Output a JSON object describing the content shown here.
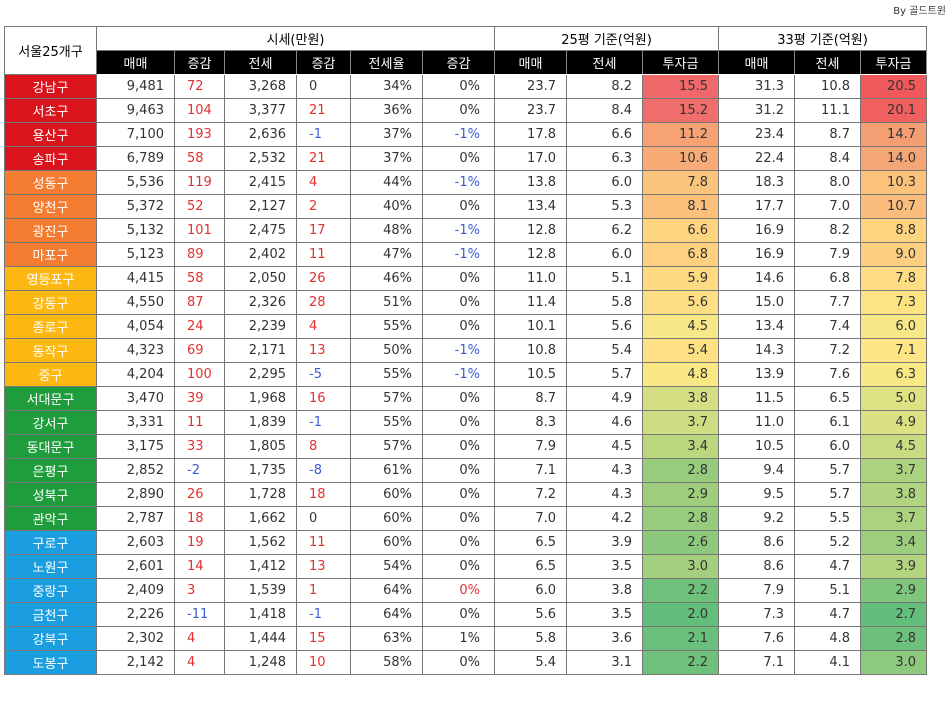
{
  "credit": "By 골드트윈",
  "header": {
    "region_col": "서울25개구",
    "groups": [
      "시세(만원)",
      "25평 기준(억원)",
      "33평 기준(억원)"
    ],
    "sub": [
      "매매",
      "증감",
      "전세",
      "증감",
      "전세율",
      "증감",
      "매매",
      "전세",
      "투자금",
      "매매",
      "전세",
      "투자금"
    ]
  },
  "rows": [
    {
      "name": "강남구",
      "tier": "red",
      "price": "9,481",
      "pchg": "72",
      "jeonse": "3,268",
      "jchg": "0",
      "ratio": "34%",
      "rchg": "0%",
      "p25": "23.7",
      "j25": "8.2",
      "i25": "15.5",
      "p33": "31.3",
      "j33": "10.8",
      "i33": "20.5",
      "c25": "#f0696a",
      "c33": "#f0595c"
    },
    {
      "name": "서초구",
      "tier": "red",
      "price": "9,463",
      "pchg": "104",
      "jeonse": "3,377",
      "jchg": "21",
      "ratio": "36%",
      "rchg": "0%",
      "p25": "23.7",
      "j25": "8.4",
      "i25": "15.2",
      "p33": "31.2",
      "j33": "11.1",
      "i33": "20.1",
      "c25": "#f06f6d",
      "c33": "#f0605f"
    },
    {
      "name": "용산구",
      "tier": "red",
      "price": "7,100",
      "pchg": "193",
      "jeonse": "2,636",
      "jchg": "-1",
      "ratio": "37%",
      "rchg": "-1%",
      "p25": "17.8",
      "j25": "6.6",
      "i25": "11.2",
      "p33": "23.4",
      "j33": "8.7",
      "i33": "14.7",
      "c25": "#f7a274",
      "c33": "#f49e74"
    },
    {
      "name": "송파구",
      "tier": "red",
      "price": "6,789",
      "pchg": "58",
      "jeonse": "2,532",
      "jchg": "21",
      "ratio": "37%",
      "rchg": "0%",
      "p25": "17.0",
      "j25": "6.3",
      "i25": "10.6",
      "p33": "22.4",
      "j33": "8.4",
      "i33": "14.0",
      "c25": "#f8aa77",
      "c33": "#f5a676"
    },
    {
      "name": "성동구",
      "tier": "orange",
      "price": "5,536",
      "pchg": "119",
      "jeonse": "2,415",
      "jchg": "4",
      "ratio": "44%",
      "rchg": "-1%",
      "p25": "13.8",
      "j25": "6.0",
      "i25": "7.8",
      "p33": "18.3",
      "j33": "8.0",
      "i33": "10.3",
      "c25": "#fbc47d",
      "c33": "#fbc27c"
    },
    {
      "name": "양천구",
      "tier": "orange",
      "price": "5,372",
      "pchg": "52",
      "jeonse": "2,127",
      "jchg": "2",
      "ratio": "40%",
      "rchg": "0%",
      "p25": "13.4",
      "j25": "5.3",
      "i25": "8.1",
      "p33": "17.7",
      "j33": "7.0",
      "i33": "10.7",
      "c25": "#fbc07c",
      "c33": "#fbbd7b"
    },
    {
      "name": "광진구",
      "tier": "orange",
      "price": "5,132",
      "pchg": "101",
      "jeonse": "2,475",
      "jchg": "17",
      "ratio": "48%",
      "rchg": "-1%",
      "p25": "12.8",
      "j25": "6.2",
      "i25": "6.6",
      "p33": "16.9",
      "j33": "8.2",
      "i33": "8.8",
      "c25": "#fed481",
      "c33": "#fed481"
    },
    {
      "name": "마포구",
      "tier": "orange",
      "price": "5,123",
      "pchg": "89",
      "jeonse": "2,402",
      "jchg": "11",
      "ratio": "47%",
      "rchg": "-1%",
      "p25": "12.8",
      "j25": "6.0",
      "i25": "6.8",
      "p33": "16.9",
      "j33": "7.9",
      "i33": "9.0",
      "c25": "#fed180",
      "c33": "#fecf80"
    },
    {
      "name": "영등포구",
      "tier": "yellow",
      "price": "4,415",
      "pchg": "58",
      "jeonse": "2,050",
      "jchg": "26",
      "ratio": "46%",
      "rchg": "0%",
      "p25": "11.0",
      "j25": "5.1",
      "i25": "5.9",
      "p33": "14.6",
      "j33": "6.8",
      "i33": "7.8",
      "c25": "#feda83",
      "c33": "#fedd84"
    },
    {
      "name": "강동구",
      "tier": "yellow",
      "price": "4,550",
      "pchg": "87",
      "jeonse": "2,326",
      "jchg": "28",
      "ratio": "51%",
      "rchg": "0%",
      "p25": "11.4",
      "j25": "5.8",
      "i25": "5.6",
      "p33": "15.0",
      "j33": "7.7",
      "i33": "7.3",
      "c25": "#fede84",
      "c33": "#fee385"
    },
    {
      "name": "종로구",
      "tier": "yellow",
      "price": "4,054",
      "pchg": "24",
      "jeonse": "2,239",
      "jchg": "4",
      "ratio": "55%",
      "rchg": "0%",
      "p25": "10.1",
      "j25": "5.6",
      "i25": "4.5",
      "p33": "13.4",
      "j33": "7.4",
      "i33": "6.0",
      "c25": "#f6e886",
      "c33": "#f6e886"
    },
    {
      "name": "동작구",
      "tier": "yellow",
      "price": "4,323",
      "pchg": "69",
      "jeonse": "2,171",
      "jchg": "13",
      "ratio": "50%",
      "rchg": "-1%",
      "p25": "10.8",
      "j25": "5.4",
      "i25": "5.4",
      "p33": "14.3",
      "j33": "7.2",
      "i33": "7.1",
      "c25": "#fee185",
      "c33": "#fee585"
    },
    {
      "name": "중구",
      "tier": "yellow",
      "price": "4,204",
      "pchg": "100",
      "jeonse": "2,295",
      "jchg": "-5",
      "ratio": "55%",
      "rchg": "-1%",
      "p25": "10.5",
      "j25": "5.7",
      "i25": "4.8",
      "p33": "13.9",
      "j33": "7.6",
      "i33": "6.3",
      "c25": "#fae885",
      "c33": "#f9e986"
    },
    {
      "name": "서대문구",
      "tier": "green",
      "price": "3,470",
      "pchg": "39",
      "jeonse": "1,968",
      "jchg": "16",
      "ratio": "57%",
      "rchg": "0%",
      "p25": "8.7",
      "j25": "4.9",
      "i25": "3.8",
      "p33": "11.5",
      "j33": "6.5",
      "i33": "5.0",
      "c25": "#d3df82",
      "c33": "#dfe283"
    },
    {
      "name": "강서구",
      "tier": "green",
      "price": "3,331",
      "pchg": "11",
      "jeonse": "1,839",
      "jchg": "-1",
      "ratio": "55%",
      "rchg": "0%",
      "p25": "8.3",
      "j25": "4.6",
      "i25": "3.7",
      "p33": "11.0",
      "j33": "6.1",
      "i33": "4.9",
      "c25": "#cedd82",
      "c33": "#dbe182"
    },
    {
      "name": "동대문구",
      "tier": "green",
      "price": "3,175",
      "pchg": "33",
      "jeonse": "1,805",
      "jchg": "8",
      "ratio": "57%",
      "rchg": "0%",
      "p25": "7.9",
      "j25": "4.5",
      "i25": "3.4",
      "p33": "10.5",
      "j33": "6.0",
      "i33": "4.5",
      "c25": "#bad77f",
      "c33": "#cadc81"
    },
    {
      "name": "은평구",
      "tier": "green",
      "price": "2,852",
      "pchg": "-2",
      "jeonse": "1,735",
      "jchg": "-8",
      "ratio": "61%",
      "rchg": "0%",
      "p25": "7.1",
      "j25": "4.3",
      "i25": "2.8",
      "p33": "9.4",
      "j33": "5.7",
      "i33": "3.7",
      "c25": "#97cc7d",
      "c33": "#abd37f"
    },
    {
      "name": "성북구",
      "tier": "green",
      "price": "2,890",
      "pchg": "26",
      "jeonse": "1,728",
      "jchg": "18",
      "ratio": "60%",
      "rchg": "0%",
      "p25": "7.2",
      "j25": "4.3",
      "i25": "2.9",
      "p33": "9.5",
      "j33": "5.7",
      "i33": "3.8",
      "c25": "#9dcd7d",
      "c33": "#b0d47f"
    },
    {
      "name": "관악구",
      "tier": "green",
      "price": "2,787",
      "pchg": "18",
      "jeonse": "1,662",
      "jchg": "0",
      "ratio": "60%",
      "rchg": "0%",
      "p25": "7.0",
      "j25": "4.2",
      "i25": "2.8",
      "p33": "9.2",
      "j33": "5.5",
      "i33": "3.7",
      "c25": "#97cc7d",
      "c33": "#abd37f"
    },
    {
      "name": "구로구",
      "tier": "blue",
      "price": "2,603",
      "pchg": "19",
      "jeonse": "1,562",
      "jchg": "11",
      "ratio": "60%",
      "rchg": "0%",
      "p25": "6.5",
      "j25": "3.9",
      "i25": "2.6",
      "p33": "8.6",
      "j33": "5.2",
      "i33": "3.4",
      "c25": "#8cc97c",
      "c33": "#9dce7e"
    },
    {
      "name": "노원구",
      "tier": "blue",
      "price": "2,601",
      "pchg": "14",
      "jeonse": "1,412",
      "jchg": "13",
      "ratio": "54%",
      "rchg": "0%",
      "p25": "6.5",
      "j25": "3.5",
      "i25": "3.0",
      "p33": "8.6",
      "j33": "4.7",
      "i33": "3.9",
      "c25": "#a3cf7e",
      "c33": "#b4d57f"
    },
    {
      "name": "중랑구",
      "tier": "blue",
      "price": "2,409",
      "pchg": "3",
      "jeonse": "1,539",
      "jchg": "1",
      "ratio": "64%",
      "rchg": "0%",
      "p25": "6.0",
      "j25": "3.8",
      "i25": "2.2",
      "p33": "7.9",
      "j33": "5.1",
      "i33": "2.9",
      "c25": "#6fc07b",
      "c33": "#80c57c"
    },
    {
      "name": "금천구",
      "tier": "blue",
      "price": "2,226",
      "pchg": "-11",
      "jeonse": "1,418",
      "jchg": "-1",
      "ratio": "64%",
      "rchg": "0%",
      "p25": "5.6",
      "j25": "3.5",
      "i25": "2.0",
      "p33": "7.3",
      "j33": "4.7",
      "i33": "2.7",
      "c25": "#63be7b",
      "c33": "#63be7b"
    },
    {
      "name": "강북구",
      "tier": "blue",
      "price": "2,302",
      "pchg": "4",
      "jeonse": "1,444",
      "jchg": "15",
      "ratio": "63%",
      "rchg": "1%",
      "p25": "5.8",
      "j25": "3.6",
      "i25": "2.1",
      "p33": "7.6",
      "j33": "4.8",
      "i33": "2.8",
      "c25": "#69bf7b",
      "c33": "#6dc07b"
    },
    {
      "name": "도봉구",
      "tier": "blue",
      "price": "2,142",
      "pchg": "4",
      "jeonse": "1,248",
      "jchg": "10",
      "ratio": "58%",
      "rchg": "0%",
      "p25": "5.4",
      "j25": "3.1",
      "i25": "2.2",
      "p33": "7.1",
      "j33": "4.1",
      "i33": "3.0",
      "c25": "#6fc07b",
      "c33": "#8dca7d"
    }
  ],
  "special_colors": {
    "0": {
      "rchg": "#e03131"
    }
  },
  "tier_colors": {
    "red": "#d9141c",
    "orange": "#f47c30",
    "yellow": "#fdb813",
    "green": "#1f9d3c",
    "blue": "#1a9ee0"
  }
}
